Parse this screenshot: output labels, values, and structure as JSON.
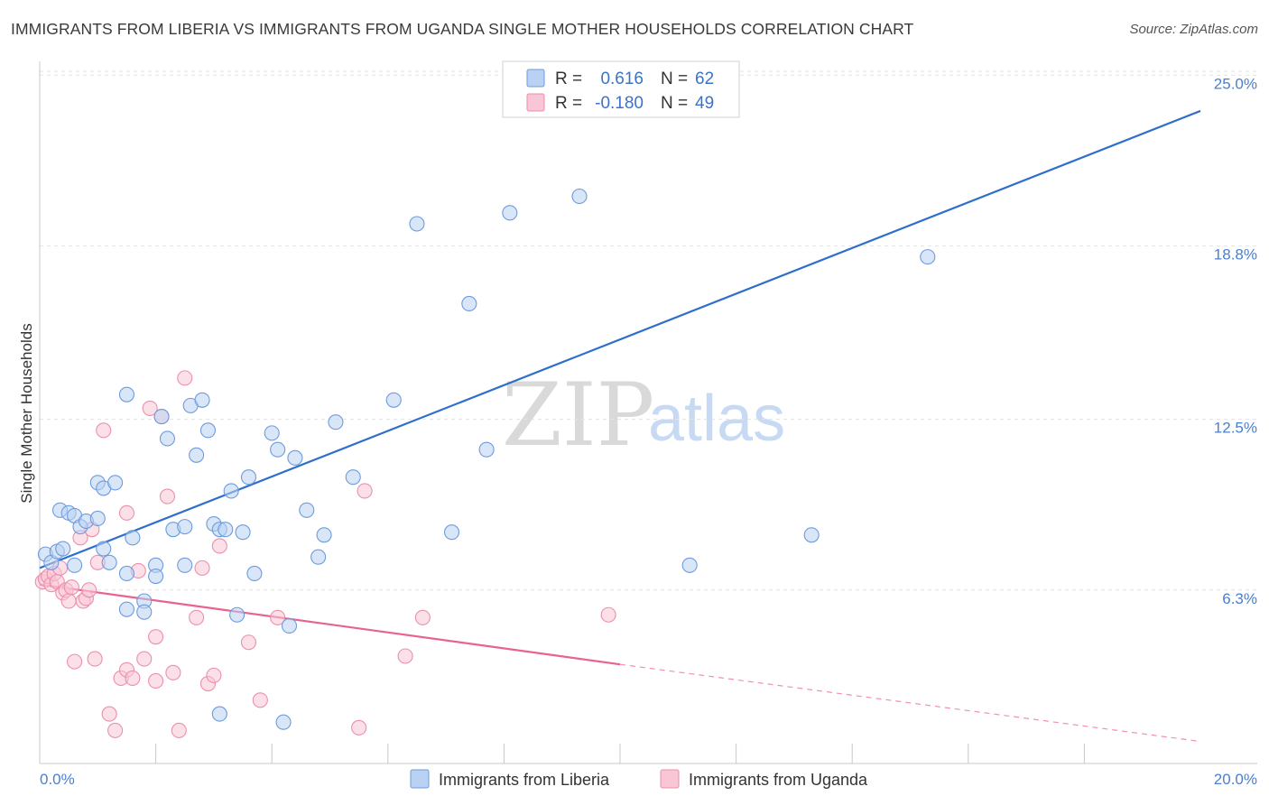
{
  "title": "IMMIGRANTS FROM LIBERIA VS IMMIGRANTS FROM UGANDA SINGLE MOTHER HOUSEHOLDS CORRELATION CHART",
  "source": "Source: ZipAtlas.com",
  "watermark": {
    "zip": "ZIP",
    "atlas": "atlas"
  },
  "colors": {
    "liberia_fill": "#b9d2f3",
    "liberia_stroke": "#6d9bdc",
    "liberia_line": "#2f6fcc",
    "uganda_fill": "#f9c6d6",
    "uganda_stroke": "#ea8fad",
    "uganda_line": "#e8638f",
    "grid": "#e3e3e3"
  },
  "legend": {
    "rows": [
      {
        "r_label": "R =",
        "r_value": "0.616",
        "n_label": "N =",
        "n_value": "62",
        "series": "liberia"
      },
      {
        "r_label": "R =",
        "r_value": "-0.180",
        "n_label": "N =",
        "n_value": "49",
        "series": "uganda"
      }
    ]
  },
  "bottom_legend": {
    "liberia": "Immigrants from Liberia",
    "uganda": "Immigrants from Uganda"
  },
  "chart_data": {
    "type": "scatter",
    "title": "IMMIGRANTS FROM LIBERIA VS IMMIGRANTS FROM UGANDA SINGLE MOTHER HOUSEHOLDS CORRELATION CHART",
    "xlabel": "",
    "ylabel": "Single Mother Households",
    "xlim": [
      0,
      20
    ],
    "ylim": [
      0,
      25.5
    ],
    "x_tick_labels": [
      "0.0%",
      "20.0%"
    ],
    "y_ticks": [
      6.3,
      12.5,
      18.8,
      25.0
    ],
    "y_tick_labels": [
      "6.3%",
      "12.5%",
      "18.8%",
      "25.0%"
    ],
    "grid": true,
    "series": [
      {
        "name": "Immigrants from Liberia",
        "r": 0.616,
        "n": 62,
        "trend": {
          "x": [
            0,
            20
          ],
          "y": [
            7.1,
            23.7
          ]
        },
        "points": [
          [
            0.1,
            7.6
          ],
          [
            0.2,
            7.3
          ],
          [
            0.3,
            7.7
          ],
          [
            0.35,
            9.2
          ],
          [
            0.4,
            7.8
          ],
          [
            0.5,
            9.1
          ],
          [
            0.6,
            9.0
          ],
          [
            0.7,
            8.6
          ],
          [
            0.8,
            8.8
          ],
          [
            1.0,
            8.9
          ],
          [
            1.1,
            7.8
          ],
          [
            1.2,
            7.3
          ],
          [
            1.0,
            10.2
          ],
          [
            1.1,
            10.0
          ],
          [
            1.3,
            10.2
          ],
          [
            1.5,
            13.4
          ],
          [
            1.6,
            8.2
          ],
          [
            1.5,
            6.9
          ],
          [
            1.5,
            5.6
          ],
          [
            1.8,
            5.9
          ],
          [
            1.8,
            5.5
          ],
          [
            2.0,
            7.2
          ],
          [
            2.0,
            6.8
          ],
          [
            2.1,
            12.6
          ],
          [
            2.2,
            11.8
          ],
          [
            2.3,
            8.5
          ],
          [
            2.5,
            7.2
          ],
          [
            2.5,
            8.6
          ],
          [
            2.6,
            13.0
          ],
          [
            2.7,
            11.2
          ],
          [
            2.8,
            13.2
          ],
          [
            2.9,
            12.1
          ],
          [
            3.0,
            8.7
          ],
          [
            3.1,
            8.5
          ],
          [
            3.2,
            8.5
          ],
          [
            3.1,
            1.8
          ],
          [
            3.3,
            9.9
          ],
          [
            3.4,
            5.4
          ],
          [
            3.5,
            8.4
          ],
          [
            3.6,
            10.4
          ],
          [
            3.7,
            6.9
          ],
          [
            4.0,
            12.0
          ],
          [
            4.1,
            11.4
          ],
          [
            4.2,
            1.5
          ],
          [
            4.3,
            5.0
          ],
          [
            4.4,
            11.1
          ],
          [
            4.6,
            9.2
          ],
          [
            4.8,
            7.5
          ],
          [
            4.9,
            8.3
          ],
          [
            5.1,
            12.4
          ],
          [
            5.4,
            10.4
          ],
          [
            6.1,
            13.2
          ],
          [
            6.5,
            19.6
          ],
          [
            7.1,
            8.4
          ],
          [
            7.4,
            16.7
          ],
          [
            7.7,
            11.4
          ],
          [
            8.1,
            20.0
          ],
          [
            9.3,
            20.6
          ],
          [
            11.2,
            7.2
          ],
          [
            13.3,
            8.3
          ],
          [
            15.3,
            18.4
          ],
          [
            0.6,
            7.2
          ]
        ]
      },
      {
        "name": "Immigrants from Uganda",
        "r": -0.18,
        "n": 49,
        "trend": {
          "x": [
            0,
            10
          ],
          "y": [
            6.5,
            3.6
          ]
        },
        "trend_dashed": {
          "x": [
            10,
            20
          ],
          "y": [
            3.6,
            0.8
          ]
        },
        "points": [
          [
            0.05,
            6.6
          ],
          [
            0.1,
            6.7
          ],
          [
            0.15,
            6.8
          ],
          [
            0.2,
            6.5
          ],
          [
            0.25,
            6.9
          ],
          [
            0.3,
            6.6
          ],
          [
            0.35,
            7.1
          ],
          [
            0.4,
            6.2
          ],
          [
            0.45,
            6.3
          ],
          [
            0.5,
            5.9
          ],
          [
            0.55,
            6.4
          ],
          [
            0.6,
            3.7
          ],
          [
            0.7,
            8.2
          ],
          [
            0.75,
            5.9
          ],
          [
            0.8,
            6.0
          ],
          [
            0.85,
            6.3
          ],
          [
            0.9,
            8.5
          ],
          [
            0.95,
            3.8
          ],
          [
            1.0,
            7.3
          ],
          [
            1.1,
            12.1
          ],
          [
            1.2,
            1.8
          ],
          [
            1.3,
            1.2
          ],
          [
            1.4,
            3.1
          ],
          [
            1.5,
            3.4
          ],
          [
            1.5,
            9.1
          ],
          [
            1.6,
            3.1
          ],
          [
            1.7,
            7.0
          ],
          [
            1.8,
            3.8
          ],
          [
            1.9,
            12.9
          ],
          [
            2.0,
            4.6
          ],
          [
            2.0,
            3.0
          ],
          [
            2.1,
            12.6
          ],
          [
            2.2,
            9.7
          ],
          [
            2.3,
            3.3
          ],
          [
            2.4,
            1.2
          ],
          [
            2.5,
            14.0
          ],
          [
            2.7,
            5.3
          ],
          [
            2.8,
            7.1
          ],
          [
            2.9,
            2.9
          ],
          [
            3.0,
            3.2
          ],
          [
            3.1,
            7.9
          ],
          [
            3.6,
            4.4
          ],
          [
            3.8,
            2.3
          ],
          [
            4.1,
            5.3
          ],
          [
            5.5,
            1.3
          ],
          [
            5.6,
            9.9
          ],
          [
            6.3,
            3.9
          ],
          [
            6.6,
            5.3
          ],
          [
            9.8,
            5.4
          ]
        ]
      }
    ]
  }
}
